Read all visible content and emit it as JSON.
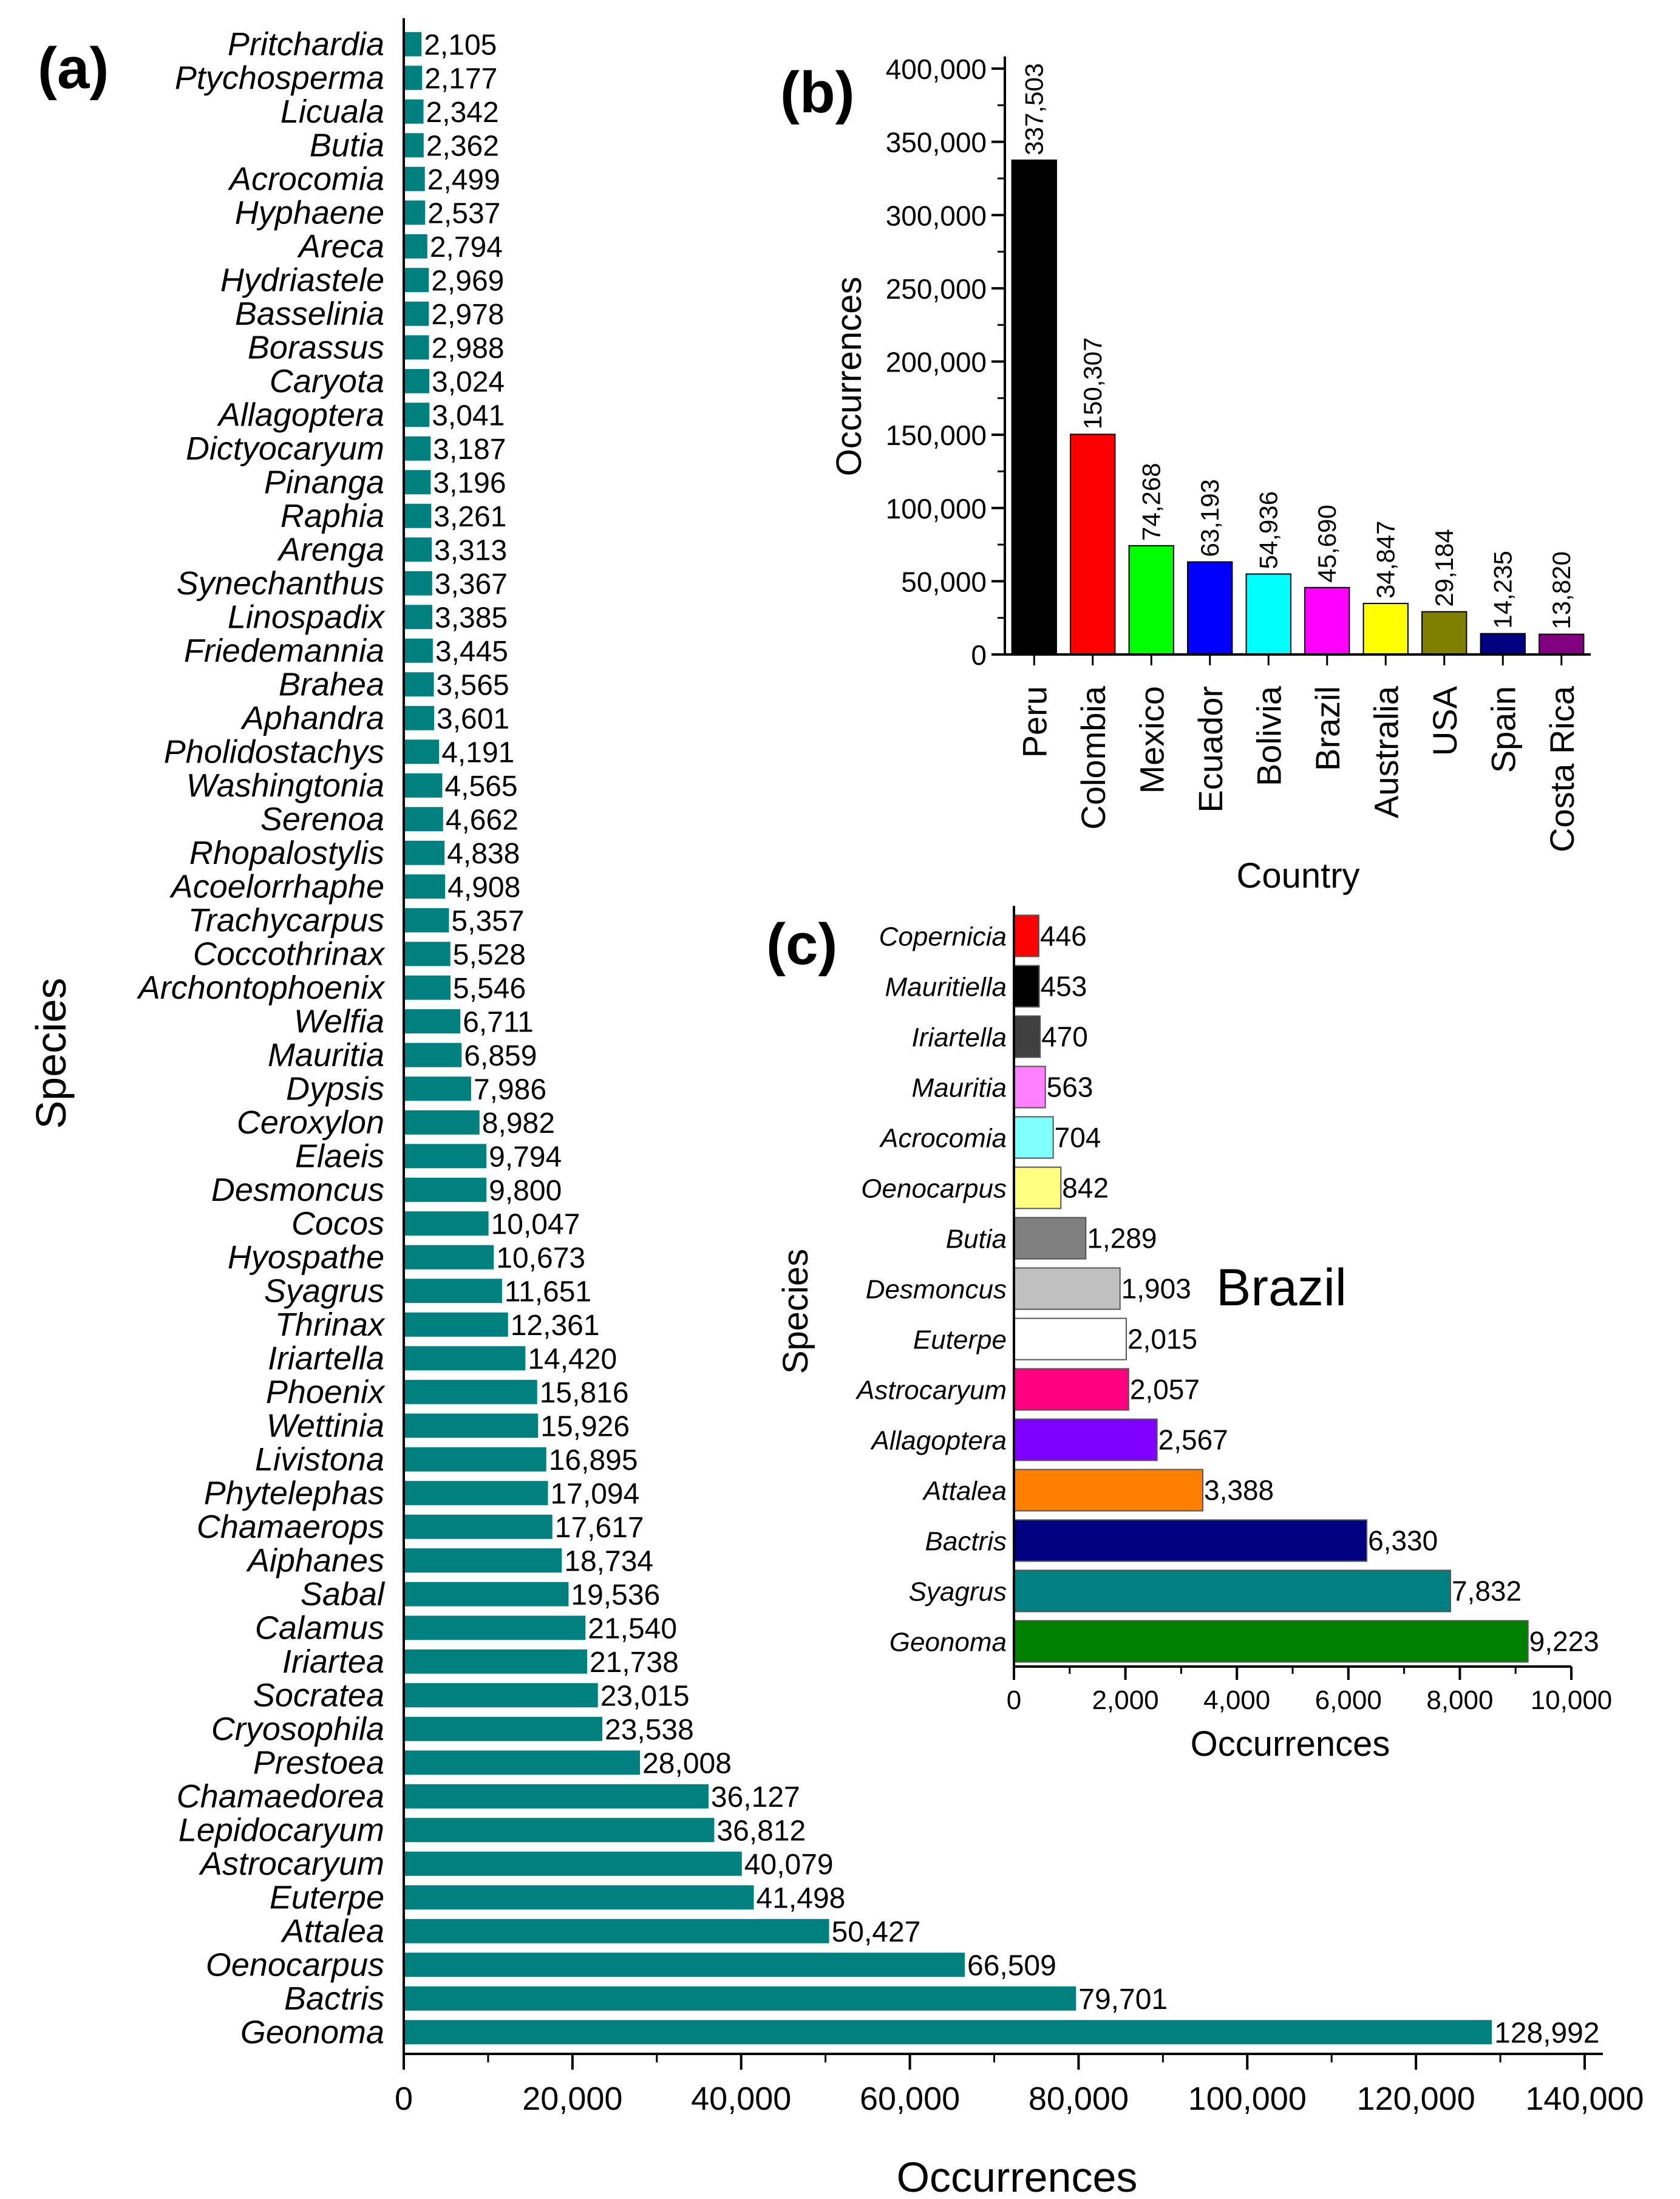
{
  "panels": [
    {
      "id": "a",
      "letter": "(a)",
      "chart_data": {
        "type": "bar",
        "orientation": "horizontal",
        "xlabel": "Occurrences",
        "ylabel": "Species",
        "xlim": [
          0,
          140000
        ],
        "xticks": [
          0,
          20000,
          40000,
          60000,
          80000,
          100000,
          120000,
          140000
        ],
        "xtick_labels": [
          "0",
          "20,000",
          "40,000",
          "60,000",
          "80,000",
          "100,000",
          "120,000",
          "140,000"
        ],
        "bar_color": "#00807f",
        "categories": [
          "Pritchardia",
          "Ptychosperma",
          "Licuala",
          "Butia",
          "Acrocomia",
          "Hyphaene",
          "Areca",
          "Hydriastele",
          "Basselinia",
          "Borassus",
          "Caryota",
          "Allagoptera",
          "Dictyocaryum",
          "Pinanga",
          "Raphia",
          "Arenga",
          "Synechanthus",
          "Linospadix",
          "Friedemannia",
          "Brahea",
          "Aphandra",
          "Pholidostachys",
          "Washingtonia",
          "Serenoa",
          "Rhopalostylis",
          "Acoelorrhaphe",
          "Trachycarpus",
          "Coccothrinax",
          "Archontophoenix",
          "Welfia",
          "Mauritia",
          "Dypsis",
          "Ceroxylon",
          "Elaeis",
          "Desmoncus",
          "Cocos",
          "Hyospathe",
          "Syagrus",
          "Thrinax",
          "Iriartella",
          "Phoenix",
          "Wettinia",
          "Livistona",
          "Phytelephas",
          "Chamaerops",
          "Aiphanes",
          "Sabal",
          "Calamus",
          "Iriartea",
          "Socratea",
          "Cryosophila",
          "Prestoea",
          "Chamaedorea",
          "Lepidocaryum",
          "Astrocaryum",
          "Euterpe",
          "Attalea",
          "Oenocarpus",
          "Bactris",
          "Geonoma"
        ],
        "values": [
          2105,
          2177,
          2342,
          2362,
          2499,
          2537,
          2794,
          2969,
          2978,
          2988,
          3024,
          3041,
          3187,
          3196,
          3261,
          3313,
          3367,
          3385,
          3445,
          3565,
          3601,
          4191,
          4565,
          4662,
          4838,
          4908,
          5357,
          5528,
          5546,
          6711,
          6859,
          7986,
          8982,
          9794,
          9800,
          10047,
          10673,
          11651,
          12361,
          14420,
          15816,
          15926,
          16895,
          17094,
          17617,
          18734,
          19536,
          21540,
          21738,
          23015,
          23538,
          28008,
          36127,
          36812,
          40079,
          41498,
          50427,
          66509,
          79701,
          128992
        ],
        "value_labels": [
          "2,105",
          "2,177",
          "2,342",
          "2,362",
          "2,499",
          "2,537",
          "2,794",
          "2,969",
          "2,978",
          "2,988",
          "3,024",
          "3,041",
          "3,187",
          "3,196",
          "3,261",
          "3,313",
          "3,367",
          "3,385",
          "3,445",
          "3,565",
          "3,601",
          "4,191",
          "4,565",
          "4,662",
          "4,838",
          "4,908",
          "5,357",
          "5,528",
          "5,546",
          "6,711",
          "6,859",
          "7,986",
          "8,982",
          "9,794",
          "9,800",
          "10,047",
          "10,673",
          "11,651",
          "12,361",
          "14,420",
          "15,816",
          "15,926",
          "16,895",
          "17,094",
          "17,617",
          "18,734",
          "19,536",
          "21,540",
          "21,738",
          "23,015",
          "23,538",
          "28,008",
          "36,127",
          "36,812",
          "40,079",
          "41,498",
          "50,427",
          "66,509",
          "79,701",
          "128,992"
        ]
      }
    },
    {
      "id": "b",
      "letter": "(b)",
      "chart_data": {
        "type": "bar",
        "orientation": "vertical",
        "xlabel": "Country",
        "ylabel": "Occurrences",
        "ylim": [
          0,
          400000
        ],
        "yticks": [
          0,
          50000,
          100000,
          150000,
          200000,
          250000,
          300000,
          350000,
          400000
        ],
        "ytick_labels": [
          "0",
          "50,000",
          "100,000",
          "150,000",
          "200,000",
          "250,000",
          "300,000",
          "350,000",
          "400,000"
        ],
        "categories": [
          "Peru",
          "Colombia",
          "Mexico",
          "Ecuador",
          "Bolivia",
          "Brazil",
          "Australia",
          "USA",
          "Spain",
          "Costa Rica"
        ],
        "values": [
          337503,
          150307,
          74268,
          63193,
          54936,
          45690,
          34847,
          29184,
          14235,
          13820
        ],
        "value_labels": [
          "337,503",
          "150,307",
          "74,268",
          "63,193",
          "54,936",
          "45,690",
          "34,847",
          "29,184",
          "14,235",
          "13,820"
        ],
        "colors": [
          "#000000",
          "#ff0000",
          "#00ff00",
          "#0000ff",
          "#00ffff",
          "#ff00ff",
          "#ffff00",
          "#808000",
          "#000080",
          "#800080"
        ]
      }
    },
    {
      "id": "c",
      "letter": "(c)",
      "annotation": "Brazil",
      "chart_data": {
        "type": "bar",
        "orientation": "horizontal",
        "xlabel": "Occurrences",
        "ylabel": "Species",
        "xlim": [
          0,
          10000
        ],
        "xticks": [
          0,
          2000,
          4000,
          6000,
          8000,
          10000
        ],
        "xtick_labels": [
          "0",
          "2,000",
          "4,000",
          "6,000",
          "8,000",
          "10,000"
        ],
        "categories": [
          "Copernicia",
          "Mauritiella",
          "Iriartella",
          "Mauritia",
          "Acrocomia",
          "Oenocarpus",
          "Butia",
          "Desmoncus",
          "Euterpe",
          "Astrocaryum",
          "Allagoptera",
          "Attalea",
          "Bactris",
          "Syagrus",
          "Geonoma"
        ],
        "values": [
          446,
          453,
          470,
          563,
          704,
          842,
          1289,
          1903,
          2015,
          2057,
          2567,
          3388,
          6330,
          7832,
          9223
        ],
        "value_labels": [
          "446",
          "453",
          "470",
          "563",
          "704",
          "842",
          "1,289",
          "1,903",
          "2,015",
          "2,057",
          "2,567",
          "3,388",
          "6,330",
          "7,832",
          "9,223"
        ],
        "colors": [
          "#ff0000",
          "#000000",
          "#404040",
          "#ff80ff",
          "#80ffff",
          "#ffff80",
          "#808080",
          "#c0c0c0",
          "#ffffff",
          "#ff0080",
          "#8000ff",
          "#ff8000",
          "#000080",
          "#008080",
          "#008000"
        ]
      }
    }
  ]
}
